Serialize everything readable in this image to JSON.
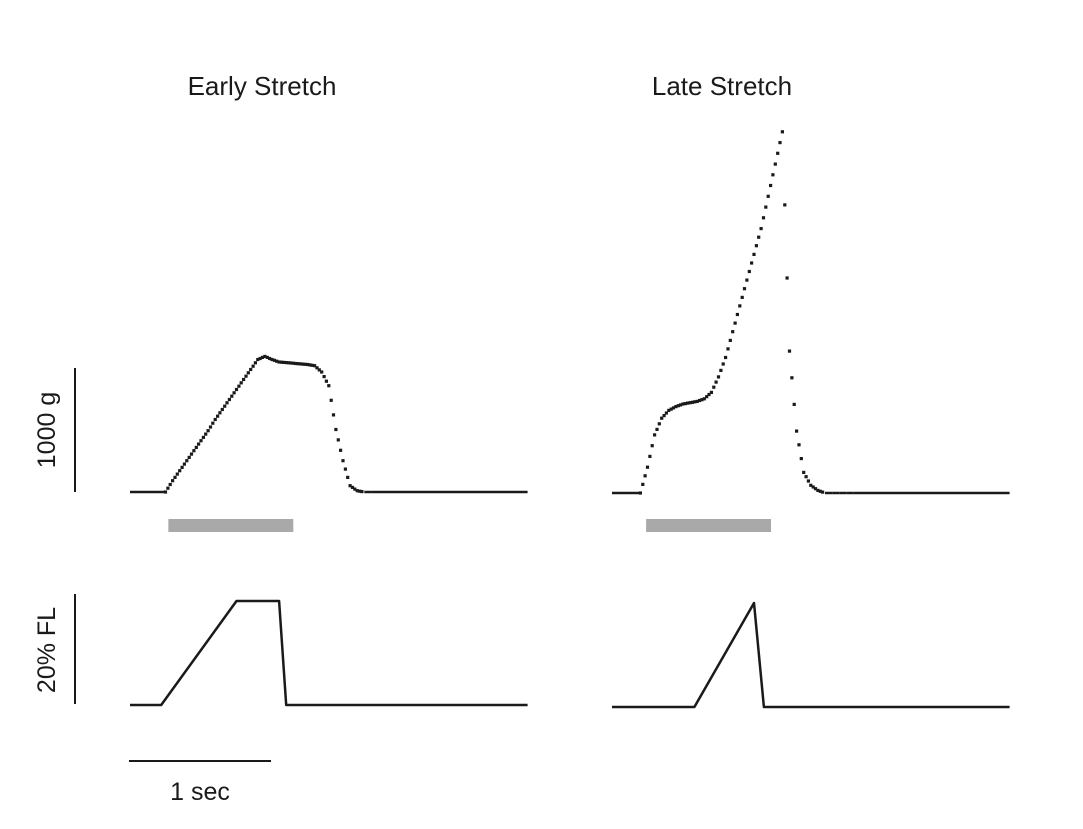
{
  "panels": [
    {
      "title": "Early Stretch"
    },
    {
      "title": "Late Stretch"
    }
  ],
  "scale_bars": {
    "force": "1000 g",
    "length": "20% FL",
    "time": "1 sec"
  },
  "colors": {
    "ink": "#1a1a1a",
    "stimulus_bar": "#a9a9a9"
  },
  "chart_data": [
    {
      "type": "scatter",
      "title": "Early Stretch",
      "ylabel": "1000 g",
      "series": [
        {
          "x": [
            0.0,
            0.25,
            0.3,
            0.35,
            0.4,
            0.45,
            0.5,
            0.55,
            0.6,
            0.65,
            0.7,
            0.75,
            0.8,
            0.85,
            0.9,
            0.95,
            1.0,
            1.05,
            1.1,
            1.15,
            1.2,
            1.25,
            1.3,
            1.35,
            1.4,
            1.45,
            1.5,
            1.55,
            1.6,
            1.65,
            1.7,
            1.75,
            2.8
          ],
          "y": [
            0,
            0,
            90,
            170,
            250,
            330,
            410,
            490,
            580,
            660,
            740,
            820,
            900,
            980,
            1060,
            1085,
            1060,
            1040,
            1035,
            1030,
            1025,
            1020,
            1010,
            960,
            850,
            500,
            250,
            50,
            10,
            0,
            0,
            0,
            0
          ]
        }
      ],
      "stimulus": {
        "start": 0.27,
        "end": 1.15
      }
    },
    {
      "type": "line",
      "ylabel": "20% FL",
      "xlabel": "1 sec",
      "series": [
        {
          "x": [
            0.0,
            0.22,
            0.75,
            1.05,
            1.1,
            2.8
          ],
          "y": [
            0,
            0,
            100,
            100,
            0,
            0
          ]
        }
      ]
    },
    {
      "type": "scatter",
      "title": "Late Stretch",
      "series": [
        {
          "x": [
            0.0,
            0.2,
            0.25,
            0.3,
            0.35,
            0.4,
            0.45,
            0.5,
            0.55,
            0.6,
            0.65,
            0.7,
            0.75,
            0.8,
            0.85,
            0.9,
            0.95,
            1.0,
            1.05,
            1.1,
            1.15,
            1.2,
            1.25,
            1.3,
            1.35,
            1.4,
            1.45,
            1.5,
            1.55,
            1.6,
            1.65,
            1.7,
            2.8
          ],
          "y": [
            0,
            0,
            200,
            450,
            580,
            640,
            670,
            690,
            700,
            710,
            730,
            780,
            900,
            1050,
            1250,
            1450,
            1650,
            1850,
            2050,
            2300,
            2550,
            2800,
            1100,
            480,
            160,
            60,
            20,
            0,
            0,
            0,
            0,
            0,
            0
          ]
        }
      ],
      "stimulus": {
        "start": 0.24,
        "end": 1.12
      }
    },
    {
      "type": "line",
      "series": [
        {
          "x": [
            0.0,
            0.58,
            1.0,
            1.07,
            2.8
          ],
          "y": [
            0,
            0,
            100,
            0,
            0
          ]
        }
      ]
    }
  ]
}
